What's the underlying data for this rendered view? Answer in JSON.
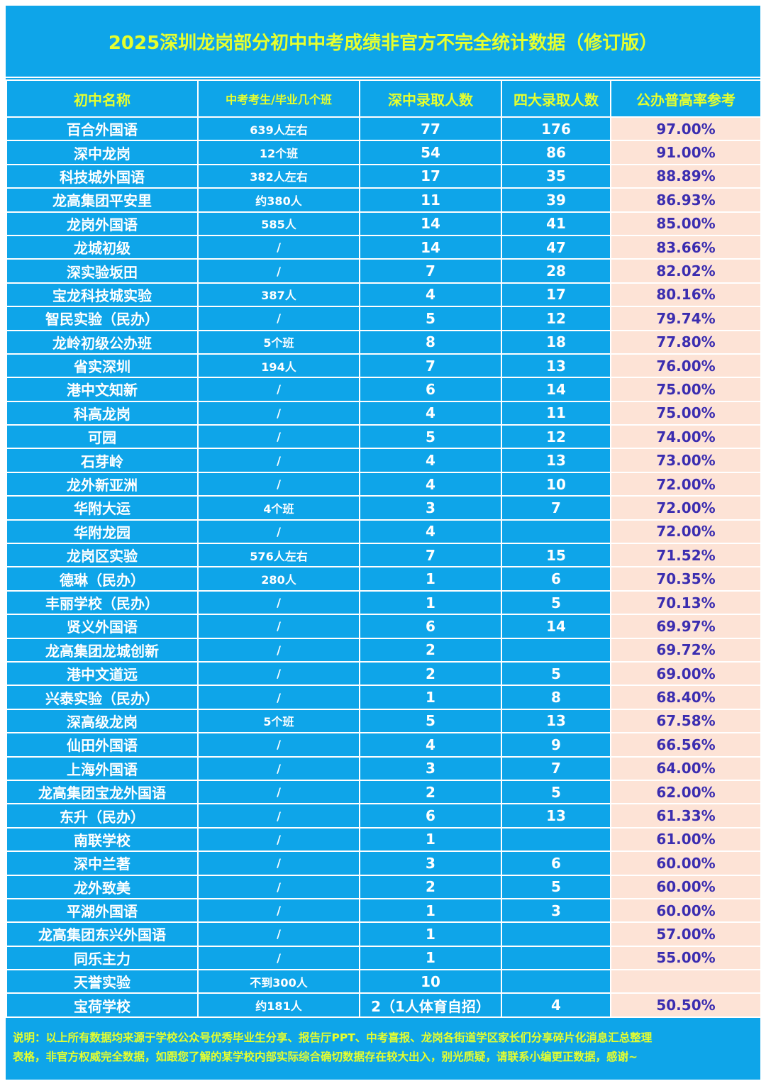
{
  "title": "2025深圳龙岗部分初中中考成绩非官方不完全统计数据（修订版）",
  "columns": [
    "初中名称",
    "中考考生/毕业几个班",
    "深中录取人数",
    "四大录取人数",
    "公办普高率参考"
  ],
  "rows": [
    [
      "百合外国语",
      "639人左右",
      "77",
      "176",
      "97.00%"
    ],
    [
      "深中龙岗",
      "12个班",
      "54",
      "86",
      "91.00%"
    ],
    [
      "科技城外国语",
      "382人左右",
      "17",
      "35",
      "88.89%"
    ],
    [
      "龙高集团平安里",
      "约380人",
      "11",
      "39",
      "86.93%"
    ],
    [
      "龙岗外国语",
      "585人",
      "14",
      "41",
      "85.00%"
    ],
    [
      "龙城初级",
      "/",
      "14",
      "47",
      "83.66%"
    ],
    [
      "深实验坂田",
      "/",
      "7",
      "28",
      "82.02%"
    ],
    [
      "宝龙科技城实验",
      "387人",
      "4",
      "17",
      "80.16%"
    ],
    [
      "智民实验（民办）",
      "/",
      "5",
      "12",
      "79.74%"
    ],
    [
      "龙岭初级公办班",
      "5个班",
      "8",
      "18",
      "77.80%"
    ],
    [
      "省实深圳",
      "194人",
      "7",
      "13",
      "76.00%"
    ],
    [
      "港中文知新",
      "/",
      "6",
      "14",
      "75.00%"
    ],
    [
      "科高龙岗",
      "/",
      "4",
      "11",
      "75.00%"
    ],
    [
      "可园",
      "/",
      "5",
      "12",
      "74.00%"
    ],
    [
      "石芽岭",
      "/",
      "4",
      "13",
      "73.00%"
    ],
    [
      "龙外新亚洲",
      "/",
      "4",
      "10",
      "72.00%"
    ],
    [
      "华附大运",
      "4个班",
      "3",
      "7",
      "72.00%"
    ],
    [
      "华附龙园",
      "/",
      "4",
      "",
      "72.00%"
    ],
    [
      "龙岗区实验",
      "576人左右",
      "7",
      "15",
      "71.52%"
    ],
    [
      "德琳（民办）",
      "280人",
      "1",
      "6",
      "70.35%"
    ],
    [
      "丰丽学校（民办）",
      "/",
      "1",
      "5",
      "70.13%"
    ],
    [
      "贤义外国语",
      "/",
      "6",
      "14",
      "69.97%"
    ],
    [
      "龙高集团龙城创新",
      "/",
      "2",
      "",
      "69.72%"
    ],
    [
      "港中文道远",
      "/",
      "2",
      "5",
      "69.00%"
    ],
    [
      "兴泰实验（民办）",
      "/",
      "1",
      "8",
      "68.40%"
    ],
    [
      "深高级龙岗",
      "5个班",
      "5",
      "13",
      "67.58%"
    ],
    [
      "仙田外国语",
      "/",
      "4",
      "9",
      "66.56%"
    ],
    [
      "上海外国语",
      "/",
      "3",
      "7",
      "64.00%"
    ],
    [
      "龙高集团宝龙外国语",
      "/",
      "2",
      "5",
      "62.00%"
    ],
    [
      "东升（民办）",
      "/",
      "6",
      "13",
      "61.33%"
    ],
    [
      "南联学校",
      "/",
      "1",
      "",
      "61.00%"
    ],
    [
      "深中兰著",
      "/",
      "3",
      "6",
      "60.00%"
    ],
    [
      "龙外致美",
      "/",
      "2",
      "5",
      "60.00%"
    ],
    [
      "平湖外国语",
      "/",
      "1",
      "3",
      "60.00%"
    ],
    [
      "龙高集团东兴外国语",
      "/",
      "1",
      "",
      "57.00%"
    ],
    [
      "同乐主力",
      "/",
      "1",
      "",
      "55.00%"
    ],
    [
      "天誉实验",
      "不到300人",
      "10",
      "",
      ""
    ],
    [
      "宝荷学校",
      "约181人",
      "2（1人体育自招）",
      "4",
      "50.50%"
    ]
  ],
  "note_lines": [
    "说明：以上所有数据均来源于学校公众号优秀毕业生分享、报告厅PPT、中考喜报、龙岗各街道学区家长们分享碎片化消息汇总整理",
    "表格，非官方权威完全数据，如跟您了解的某学校内部实际综合确切数据存在较大出入，别光质疑，请联系小编更正数据，感谢~"
  ],
  "colors": {
    "background": "#0ea5e9",
    "title_text": "#e6ff2e",
    "cell_text": "#ffffff",
    "rate_cell_bg": "#fde3d6",
    "rate_text": "#3b2db0"
  }
}
